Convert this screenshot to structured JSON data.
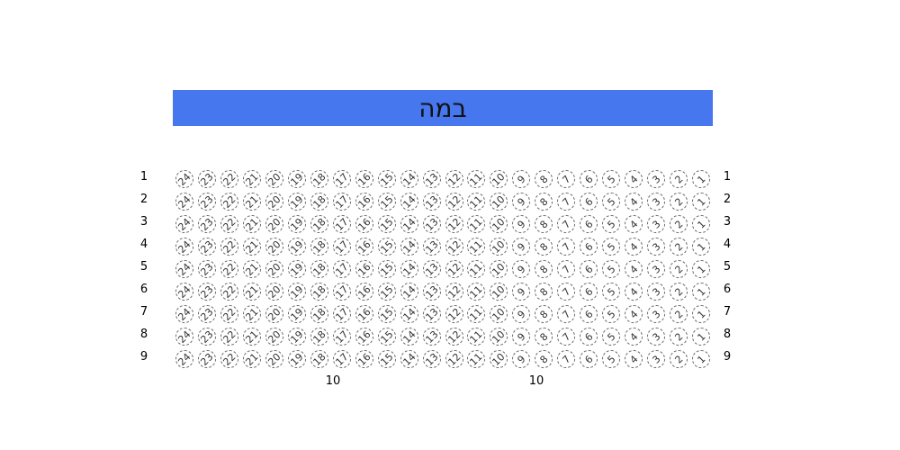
{
  "stage": {
    "label": "במה",
    "color": "#4677ee"
  },
  "rows": [
    "1",
    "2",
    "3",
    "4",
    "5",
    "6",
    "7",
    "8",
    "9"
  ],
  "seats": [
    "24",
    "23",
    "22",
    "21",
    "20",
    "19",
    "18",
    "17",
    "16",
    "15",
    "14",
    "13",
    "12",
    "11",
    "10",
    "9",
    "8",
    "7",
    "6",
    "5",
    "4",
    "3",
    "2",
    "1"
  ],
  "bottom_labels": [
    "10",
    "10"
  ]
}
